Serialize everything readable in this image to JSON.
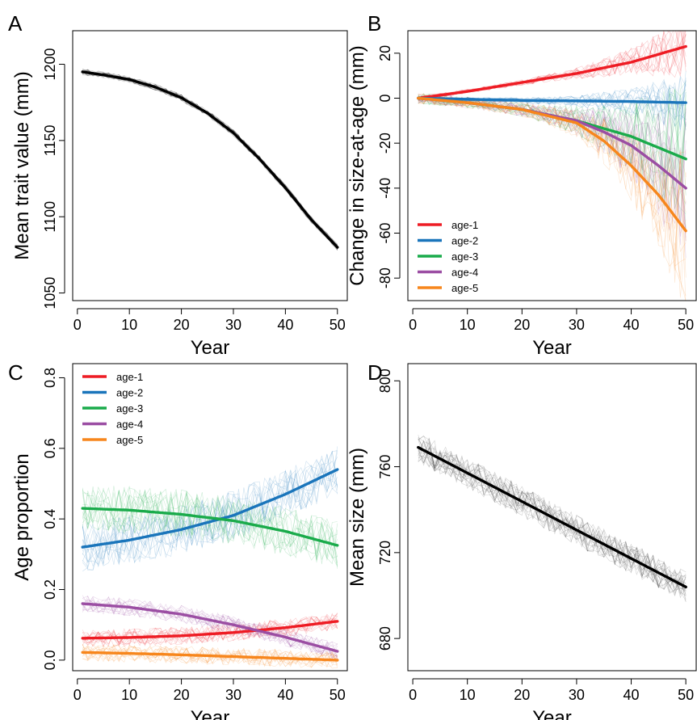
{
  "panels": [
    {
      "letter": "A",
      "chart_data": {
        "type": "line",
        "xlabel": "Year",
        "ylabel": "Mean trait value (mm)",
        "xlim": [
          1,
          50
        ],
        "ylim": [
          1045,
          1222
        ],
        "xticks": [
          0,
          10,
          20,
          30,
          40,
          50
        ],
        "yticks": [
          1050,
          1100,
          1150,
          1200
        ],
        "grid": false,
        "series": [
          {
            "color": "#000000",
            "style": "mean",
            "x": [
              1,
              5,
              10,
              15,
              20,
              25,
              30,
              35,
              40,
              45,
              50
            ],
            "y": [
              1195,
              1193,
              1190,
              1185,
              1178,
              1168,
              1155,
              1138,
              1119,
              1098,
              1080
            ]
          }
        ]
      }
    },
    {
      "letter": "B",
      "chart_data": {
        "type": "line",
        "xlabel": "Year",
        "ylabel": "Change in size-at-age (mm)",
        "xlim": [
          1,
          50
        ],
        "ylim": [
          -90,
          30
        ],
        "xticks": [
          0,
          10,
          20,
          30,
          40,
          50
        ],
        "yticks": [
          -80,
          -60,
          -40,
          -20,
          0,
          20
        ],
        "grid": false,
        "legend_position": "bottom-left",
        "series": [
          {
            "name": "age-1",
            "color": "#ee1c24",
            "x": [
              1,
              10,
              20,
              30,
              40,
              50
            ],
            "y": [
              0,
              3,
              7,
              11,
              16,
              23
            ]
          },
          {
            "name": "age-2",
            "color": "#1a75bb",
            "x": [
              1,
              10,
              20,
              30,
              40,
              50
            ],
            "y": [
              0,
              -0.5,
              -1,
              -1.2,
              -1.5,
              -2
            ]
          },
          {
            "name": "age-3",
            "color": "#1aab4b",
            "x": [
              1,
              10,
              20,
              30,
              40,
              50
            ],
            "y": [
              0,
              -2,
              -5,
              -10,
              -17,
              -27
            ]
          },
          {
            "name": "age-4",
            "color": "#9b4ea3",
            "x": [
              1,
              10,
              20,
              30,
              35,
              40,
              45,
              50
            ],
            "y": [
              0,
              -2,
              -5,
              -10,
              -15,
              -21,
              -30,
              -40
            ]
          },
          {
            "name": "age-5",
            "color": "#f7861c",
            "x": [
              1,
              10,
              20,
              30,
              35,
              40,
              45,
              50
            ],
            "y": [
              0,
              -2,
              -5,
              -11,
              -19,
              -30,
              -43,
              -59
            ]
          }
        ]
      }
    },
    {
      "letter": "C",
      "chart_data": {
        "type": "line",
        "xlabel": "Year",
        "ylabel": "Age proportion",
        "xlim": [
          1,
          50
        ],
        "ylim": [
          -0.03,
          0.84
        ],
        "xticks": [
          0,
          10,
          20,
          30,
          40,
          50
        ],
        "yticks": [
          0.0,
          0.2,
          0.4,
          0.6,
          0.8
        ],
        "ytick_labels": [
          "0.0",
          "0.2",
          "0.4",
          "0.6",
          "0.8"
        ],
        "grid": false,
        "legend_position": "top-left",
        "series": [
          {
            "name": "age-1",
            "color": "#ee1c24",
            "x": [
              1,
              10,
              20,
              30,
              40,
              50
            ],
            "y": [
              0.062,
              0.064,
              0.069,
              0.078,
              0.092,
              0.11
            ]
          },
          {
            "name": "age-2",
            "color": "#1a75bb",
            "x": [
              1,
              10,
              20,
              30,
              40,
              50
            ],
            "y": [
              0.32,
              0.34,
              0.37,
              0.41,
              0.47,
              0.54
            ]
          },
          {
            "name": "age-3",
            "color": "#1aab4b",
            "x": [
              1,
              10,
              20,
              30,
              40,
              50
            ],
            "y": [
              0.43,
              0.425,
              0.413,
              0.395,
              0.365,
              0.325
            ]
          },
          {
            "name": "age-4",
            "color": "#9b4ea3",
            "x": [
              1,
              10,
              20,
              30,
              40,
              50
            ],
            "y": [
              0.16,
              0.15,
              0.13,
              0.1,
              0.065,
              0.025
            ]
          },
          {
            "name": "age-5",
            "color": "#f7861c",
            "x": [
              1,
              10,
              20,
              30,
              40,
              50
            ],
            "y": [
              0.022,
              0.019,
              0.015,
              0.01,
              0.005,
              0.0
            ]
          }
        ]
      }
    },
    {
      "letter": "D",
      "chart_data": {
        "type": "line",
        "xlabel": "Year",
        "ylabel": "Mean size (mm)",
        "xlim": [
          1,
          50
        ],
        "ylim": [
          665,
          808
        ],
        "xticks": [
          0,
          10,
          20,
          30,
          40,
          50
        ],
        "yticks": [
          680,
          720,
          760,
          800
        ],
        "grid": false,
        "series": [
          {
            "color": "#000000",
            "style": "mean",
            "x": [
              1,
              50
            ],
            "y": [
              769,
              704
            ]
          }
        ]
      }
    }
  ]
}
